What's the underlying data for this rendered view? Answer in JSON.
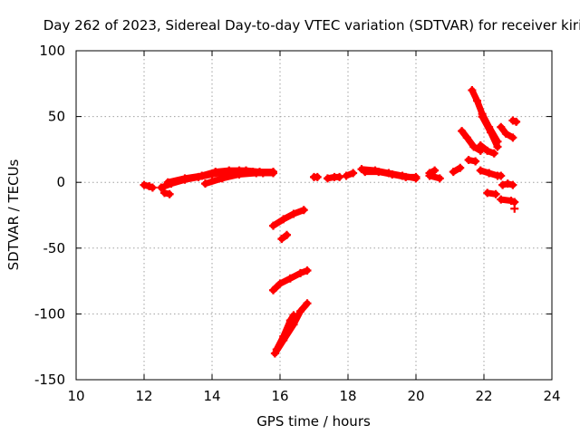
{
  "chart_data": {
    "type": "scatter",
    "title": "Day 262 of 2023, Sidereal Day-to-day VTEC variation (SDTVAR) for receiver kiri",
    "xlabel": "GPS time / hours",
    "ylabel": "SDTVAR / TECUs",
    "xlim": [
      10,
      24
    ],
    "ylim": [
      -150,
      100
    ],
    "xticks": [
      10,
      12,
      14,
      16,
      18,
      20,
      22,
      24
    ],
    "yticks": [
      -150,
      -100,
      -50,
      0,
      50,
      100
    ],
    "xtick_labels": [
      "10",
      "12",
      "14",
      "16",
      "18",
      "20",
      "22",
      "24"
    ],
    "ytick_labels": [
      "-150",
      "-100",
      "-50",
      "0",
      "50",
      "100"
    ],
    "grid": true,
    "marker": "plus",
    "color": "#ff0000",
    "series": [
      {
        "name": "s1",
        "points": [
          [
            12.0,
            -2
          ],
          [
            12.15,
            -3
          ],
          [
            12.25,
            -4
          ]
        ]
      },
      {
        "name": "s2",
        "points": [
          [
            12.6,
            -8
          ],
          [
            12.75,
            -9
          ]
        ]
      },
      {
        "name": "s3",
        "points": [
          [
            12.5,
            -4
          ],
          [
            12.8,
            -1
          ],
          [
            13.2,
            2
          ],
          [
            13.6,
            4
          ],
          [
            14.0,
            6
          ],
          [
            14.4,
            8
          ],
          [
            14.8,
            9
          ],
          [
            15.2,
            8
          ],
          [
            15.5,
            7
          ]
        ]
      },
      {
        "name": "s4",
        "points": [
          [
            12.7,
            0
          ],
          [
            13.2,
            3
          ],
          [
            13.7,
            5
          ],
          [
            14.1,
            8
          ],
          [
            14.5,
            9
          ],
          [
            15.0,
            9
          ],
          [
            15.4,
            8
          ],
          [
            15.8,
            8
          ]
        ]
      },
      {
        "name": "s5",
        "points": [
          [
            13.8,
            -1
          ],
          [
            14.3,
            3
          ],
          [
            14.8,
            6
          ],
          [
            15.3,
            7
          ],
          [
            15.8,
            7
          ]
        ]
      },
      {
        "name": "s6",
        "points": [
          [
            15.8,
            -33
          ],
          [
            16.1,
            -28
          ],
          [
            16.4,
            -24
          ],
          [
            16.7,
            -21
          ]
        ]
      },
      {
        "name": "s7",
        "points": [
          [
            16.05,
            -43
          ],
          [
            16.2,
            -40
          ]
        ]
      },
      {
        "name": "s8",
        "points": [
          [
            15.8,
            -82
          ],
          [
            16.0,
            -77
          ],
          [
            16.3,
            -73
          ],
          [
            16.6,
            -69
          ],
          [
            16.8,
            -67
          ]
        ]
      },
      {
        "name": "s9",
        "points": [
          [
            15.85,
            -130
          ],
          [
            16.1,
            -120
          ],
          [
            16.4,
            -108
          ],
          [
            16.6,
            -98
          ],
          [
            16.8,
            -92
          ]
        ]
      },
      {
        "name": "s10",
        "points": [
          [
            15.9,
            -127
          ],
          [
            16.1,
            -117
          ],
          [
            16.3,
            -105
          ],
          [
            16.4,
            -101
          ]
        ]
      },
      {
        "name": "s11",
        "points": [
          [
            17.0,
            4
          ],
          [
            17.1,
            4
          ]
        ]
      },
      {
        "name": "s12",
        "points": [
          [
            17.4,
            3
          ],
          [
            17.6,
            4
          ],
          [
            17.75,
            4
          ]
        ]
      },
      {
        "name": "s13",
        "points": [
          [
            17.95,
            5
          ],
          [
            18.15,
            7
          ]
        ]
      },
      {
        "name": "s14",
        "points": [
          [
            18.4,
            10
          ],
          [
            18.8,
            9
          ],
          [
            19.2,
            7
          ],
          [
            19.6,
            5
          ],
          [
            20.0,
            3
          ]
        ]
      },
      {
        "name": "s15",
        "points": [
          [
            18.5,
            8
          ],
          [
            18.9,
            8
          ],
          [
            19.3,
            6
          ],
          [
            19.7,
            4
          ],
          [
            20.0,
            4
          ]
        ]
      },
      {
        "name": "s16",
        "points": [
          [
            20.4,
            5
          ],
          [
            20.7,
            3
          ]
        ]
      },
      {
        "name": "s17",
        "points": [
          [
            20.4,
            7
          ],
          [
            20.55,
            9
          ]
        ]
      },
      {
        "name": "s18",
        "points": [
          [
            21.1,
            8
          ],
          [
            21.3,
            11
          ]
        ]
      },
      {
        "name": "s19",
        "points": [
          [
            21.35,
            39
          ],
          [
            21.5,
            34
          ],
          [
            21.7,
            27
          ],
          [
            21.9,
            24
          ]
        ]
      },
      {
        "name": "s20",
        "points": [
          [
            21.65,
            70
          ],
          [
            21.8,
            62
          ],
          [
            21.95,
            52
          ],
          [
            22.15,
            42
          ],
          [
            22.4,
            31
          ]
        ]
      },
      {
        "name": "s21",
        "points": [
          [
            21.95,
            50
          ],
          [
            22.2,
            38
          ],
          [
            22.4,
            27
          ]
        ]
      },
      {
        "name": "s22",
        "points": [
          [
            21.9,
            28
          ],
          [
            22.1,
            24
          ],
          [
            22.3,
            22
          ]
        ]
      },
      {
        "name": "s23",
        "points": [
          [
            21.55,
            17
          ],
          [
            21.75,
            16
          ]
        ]
      },
      {
        "name": "s24",
        "points": [
          [
            21.9,
            9
          ],
          [
            22.15,
            7
          ],
          [
            22.4,
            5
          ],
          [
            22.5,
            5
          ]
        ]
      },
      {
        "name": "s25",
        "points": [
          [
            22.1,
            -8
          ],
          [
            22.35,
            -9
          ]
        ]
      },
      {
        "name": "s26",
        "points": [
          [
            22.5,
            42
          ],
          [
            22.65,
            37
          ],
          [
            22.85,
            34
          ]
        ]
      },
      {
        "name": "s27",
        "points": [
          [
            22.55,
            -2
          ],
          [
            22.7,
            -1
          ],
          [
            22.85,
            -2
          ]
        ]
      },
      {
        "name": "s28",
        "points": [
          [
            22.5,
            -13
          ],
          [
            22.8,
            -14
          ],
          [
            22.9,
            -15
          ]
        ]
      },
      {
        "name": "s29",
        "points": [
          [
            22.85,
            47
          ],
          [
            22.95,
            46
          ]
        ]
      },
      {
        "name": "s30",
        "points": [
          [
            22.9,
            -20
          ]
        ]
      }
    ]
  }
}
